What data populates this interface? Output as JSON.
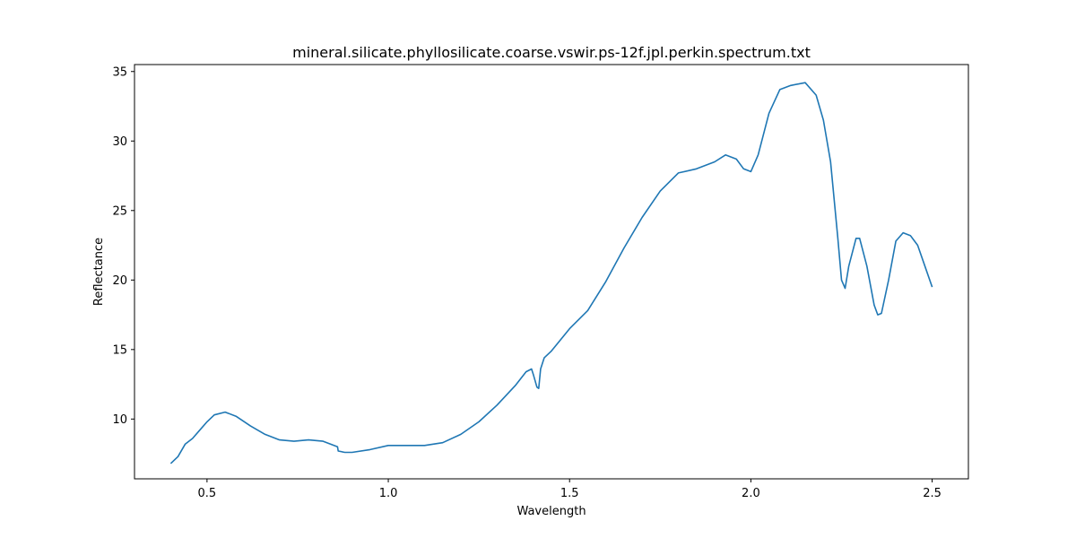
{
  "chart_data": {
    "type": "line",
    "title": "mineral.silicate.phyllosilicate.coarse.vswir.ps-12f.jpl.perkin.spectrum.txt",
    "xlabel": "Wavelength",
    "ylabel": "Reflectance",
    "xlim": [
      0.3,
      2.6
    ],
    "ylim": [
      5.7,
      35.5
    ],
    "x_ticks": [
      0.5,
      1.0,
      1.5,
      2.0,
      2.5
    ],
    "x_tick_labels": [
      "0.5",
      "1.0",
      "1.5",
      "2.0",
      "2.5"
    ],
    "y_ticks": [
      10,
      15,
      20,
      25,
      30,
      35
    ],
    "y_tick_labels": [
      "10",
      "15",
      "20",
      "25",
      "30",
      "35"
    ],
    "grid": false,
    "legend": "none",
    "series": [
      {
        "color": "#1f77b4",
        "x": [
          0.4,
          0.42,
          0.44,
          0.46,
          0.48,
          0.5,
          0.52,
          0.55,
          0.58,
          0.62,
          0.66,
          0.7,
          0.74,
          0.78,
          0.82,
          0.86,
          0.862,
          0.88,
          0.9,
          0.95,
          1.0,
          1.05,
          1.1,
          1.15,
          1.2,
          1.25,
          1.3,
          1.35,
          1.38,
          1.395,
          1.4,
          1.41,
          1.415,
          1.42,
          1.43,
          1.45,
          1.5,
          1.55,
          1.6,
          1.65,
          1.7,
          1.75,
          1.8,
          1.85,
          1.9,
          1.93,
          1.96,
          1.98,
          2.0,
          2.02,
          2.05,
          2.08,
          2.11,
          2.15,
          2.18,
          2.2,
          2.22,
          2.24,
          2.25,
          2.26,
          2.27,
          2.29,
          2.3,
          2.32,
          2.34,
          2.35,
          2.36,
          2.38,
          2.4,
          2.42,
          2.44,
          2.46,
          2.48,
          2.5
        ],
        "y": [
          6.8,
          7.3,
          8.2,
          8.6,
          9.2,
          9.8,
          10.3,
          10.5,
          10.2,
          9.5,
          8.9,
          8.5,
          8.4,
          8.5,
          8.4,
          8.0,
          7.7,
          7.6,
          7.6,
          7.8,
          8.1,
          8.1,
          8.1,
          8.3,
          8.9,
          9.8,
          11.0,
          12.4,
          13.4,
          13.6,
          13.2,
          12.3,
          12.2,
          13.6,
          14.4,
          14.9,
          16.5,
          17.8,
          19.9,
          22.3,
          24.5,
          26.4,
          27.7,
          28.0,
          28.5,
          29.0,
          28.7,
          28.0,
          27.8,
          29.0,
          32.0,
          33.7,
          34.0,
          34.2,
          33.3,
          31.5,
          28.5,
          23.0,
          20.0,
          19.4,
          21.0,
          23.0,
          23.0,
          21.0,
          18.2,
          17.5,
          17.6,
          20.0,
          22.8,
          23.4,
          23.2,
          22.5,
          21.0,
          19.5
        ]
      }
    ]
  }
}
